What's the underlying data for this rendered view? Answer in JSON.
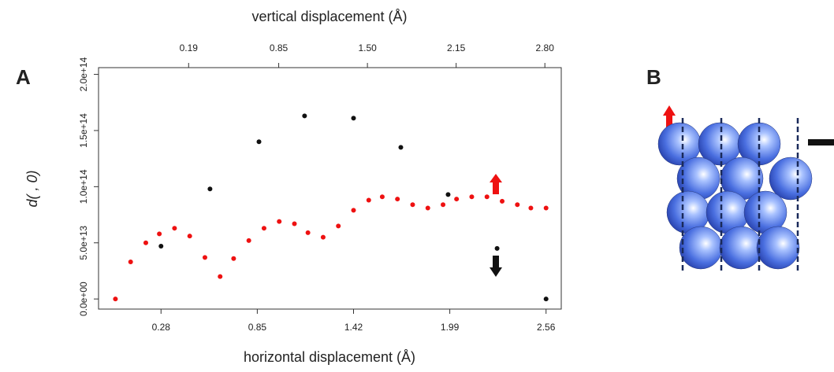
{
  "chart_data": {
    "type": "scatter",
    "panel_label": "A",
    "xlabel": "horizontal displacement (Å)",
    "x2label": "vertical displacement (Å)",
    "ylabel": "d( , 0)",
    "xlim": [
      -0.09,
      2.65
    ],
    "xticks": [
      0.28,
      0.85,
      1.42,
      1.99,
      2.56
    ],
    "x2lim": [
      -0.47,
      2.92
    ],
    "x2ticks": [
      0.19,
      0.85,
      {
        "value": 1.5,
        "label": "1.50"
      },
      2.15,
      {
        "value": 2.8,
        "label": "2.80"
      }
    ],
    "ylim": [
      -9000000000000.0,
      206000000000000.0
    ],
    "yticks": [
      {
        "value": 0,
        "label": "0.0e+00"
      },
      {
        "value": 50000000000000.0,
        "label": "5.0e+13"
      },
      {
        "value": 100000000000000.0,
        "label": "1.0e+14"
      },
      {
        "value": 150000000000000.0,
        "label": "1.5e+14"
      },
      {
        "value": 200000000000000.0,
        "label": "2.0e+14"
      }
    ],
    "series": [
      {
        "color": "#ee1111",
        "x": [
          0.01,
          0.1,
          0.19,
          0.27,
          0.36,
          0.45,
          0.54,
          0.63,
          0.71,
          0.8,
          0.89,
          0.98,
          1.07,
          1.15,
          1.24,
          1.33,
          1.42,
          1.51,
          1.59,
          1.68,
          1.77,
          1.86,
          1.95,
          2.03,
          2.12,
          2.21,
          2.3,
          2.39,
          2.47,
          2.56
        ],
        "values": [
          0,
          33000000000000.0,
          50000000000000.0,
          58000000000000.0,
          63000000000000.0,
          56000000000000.0,
          37000000000000.0,
          20000000000000.0,
          36000000000000.0,
          52000000000000.0,
          63000000000000.0,
          69000000000000.0,
          67000000000000.0,
          59000000000000.0,
          55000000000000.0,
          65000000000000.0,
          79000000000000.0,
          88000000000000.0,
          91000000000000.0,
          89000000000000.0,
          84000000000000.0,
          81000000000000.0,
          84000000000000.0,
          89000000000000.0,
          91000000000000.0,
          91000000000000.0,
          87000000000000.0,
          84000000000000.0,
          81000000000000.0,
          81000000000000.0
        ]
      },
      {
        "color": "#111111",
        "x": [
          0.28,
          0.57,
          0.86,
          1.13,
          1.42,
          1.7,
          1.98,
          2.27,
          2.56
        ],
        "values": [
          47000000000000.0,
          98000000000000.0,
          140000000000000.0,
          163000000000000.0,
          161000000000000.0,
          135000000000000.0,
          93000000000000.0,
          45000000000000.0,
          0
        ]
      }
    ]
  },
  "diagram": {
    "panel_label": "B"
  }
}
